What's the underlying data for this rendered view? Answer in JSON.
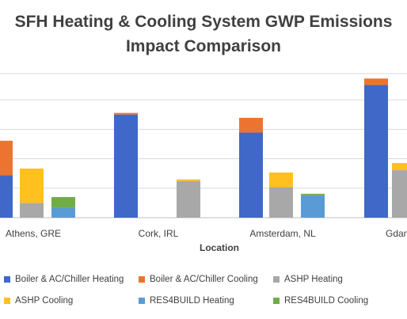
{
  "chart_data": {
    "type": "bar",
    "stacked": true,
    "title_lines": [
      "SFH Heating & Cooling System GWP Emissions",
      "Impact Comparison"
    ],
    "xlabel": "Location",
    "ylabel": "",
    "categories": [
      "Athens, GRE",
      "Cork, IRL",
      "Amsterdam, NL",
      "Gdan"
    ],
    "ylim": [
      0,
      4.4
    ],
    "grid": true,
    "legend_position": "bottom",
    "groups": [
      {
        "name": "Boiler & AC/Chiller",
        "stack": [
          "Boiler & AC/Chiller Heating",
          "Boiler & AC/Chiller Cooling"
        ],
        "values": [
          [
            1.3,
            1.05
          ],
          [
            3.15,
            0.05
          ],
          [
            2.6,
            0.45
          ],
          [
            4.05,
            0.2
          ]
        ]
      },
      {
        "name": "ASHP",
        "stack": [
          "ASHP Heating",
          "ASHP Cooling"
        ],
        "values": [
          [
            0.45,
            1.05
          ],
          [
            1.12,
            0.05
          ],
          [
            0.93,
            0.45
          ],
          [
            1.45,
            0.22
          ]
        ]
      },
      {
        "name": "RES4BUILD",
        "stack": [
          "RES4BUILD Heating",
          "RES4BUILD Cooling"
        ],
        "values": [
          [
            0.3,
            0.33
          ],
          [
            0.8,
            0.0
          ],
          [
            0.68,
            0.05
          ],
          [
            null,
            null
          ]
        ]
      }
    ],
    "series": [
      {
        "name": "Boiler & AC/Chiller Heating",
        "color": "#3f68c9"
      },
      {
        "name": "Boiler & AC/Chiller Cooling",
        "color": "#ed7430"
      },
      {
        "name": "ASHP Heating",
        "color": "#a8a8a8"
      },
      {
        "name": "ASHP Cooling",
        "color": "#ffc020"
      },
      {
        "name": "RES4BUILD Heating",
        "color": "#5b9bd5"
      },
      {
        "name": "RES4BUILD Cooling",
        "color": "#70ad47"
      }
    ]
  }
}
